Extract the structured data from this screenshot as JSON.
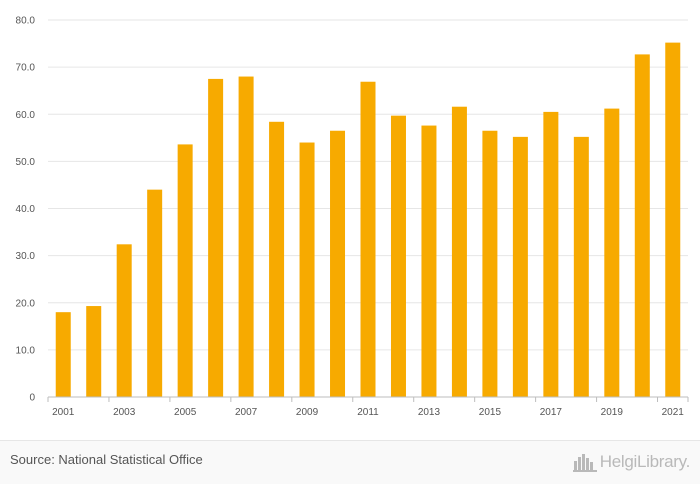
{
  "colors": {
    "bar": "#f7aa00",
    "grid": "#e6e6e6",
    "axis": "#bdbdbd",
    "text": "#555555"
  },
  "chart_data": {
    "type": "bar",
    "title": "",
    "xlabel": "",
    "ylabel": "",
    "categories": [
      "2001",
      "2002",
      "2003",
      "2004",
      "2005",
      "2006",
      "2007",
      "2008",
      "2009",
      "2010",
      "2011",
      "2012",
      "2013",
      "2014",
      "2015",
      "2016",
      "2017",
      "2018",
      "2019",
      "2020",
      "2021"
    ],
    "values": [
      18.0,
      19.3,
      32.4,
      44.0,
      53.6,
      67.5,
      68.0,
      58.4,
      54.0,
      56.5,
      66.9,
      59.7,
      57.6,
      61.6,
      56.5,
      55.2,
      60.5,
      55.2,
      61.2,
      72.7,
      75.2
    ],
    "x_tick_labels": [
      "2001",
      "2003",
      "2005",
      "2007",
      "2009",
      "2011",
      "2013",
      "2015",
      "2017",
      "2019",
      "2021"
    ],
    "y_tick_labels": [
      "0",
      "10.0",
      "20.0",
      "30.0",
      "40.0",
      "50.0",
      "60.0",
      "70.0",
      "80.0"
    ],
    "ylim": [
      0,
      80
    ],
    "grid": true,
    "legend": "none"
  },
  "footer": {
    "source": "Source: National Statistical Office",
    "logo_text": "HelgiLibrary.",
    "logo_icon": "city-skyline-icon"
  }
}
